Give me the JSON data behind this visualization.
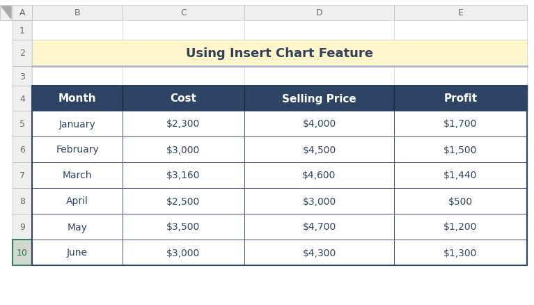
{
  "title": "Using Insert Chart Feature",
  "title_bg": "#FFF5CC",
  "title_color": "#2F4057",
  "title_border": "#A8B8D0",
  "header_row": [
    "Month",
    "Cost",
    "Selling Price",
    "Profit"
  ],
  "header_bg": "#2F4465",
  "header_text_color": "#FFFFFF",
  "rows": [
    [
      "January",
      "$2,300",
      "$4,000",
      "$1,700"
    ],
    [
      "February",
      "$3,000",
      "$4,500",
      "$1,500"
    ],
    [
      "March",
      "$3,160",
      "$4,600",
      "$1,440"
    ],
    [
      "April",
      "$2,500",
      "$3,000",
      "$500"
    ],
    [
      "May",
      "$3,500",
      "$4,700",
      "$1,200"
    ],
    [
      "June",
      "$3,000",
      "$4,300",
      "$1,300"
    ]
  ],
  "row_bg": "#FFFFFF",
  "row_text_color": "#2F4465",
  "grid_color": "#2F4465",
  "excel_bg": "#FFFFFF",
  "col_header_bg": "#EFEFEF",
  "col_header_text": "#666666",
  "row_header_bg": "#EFEFEF",
  "row_header_text": "#666666",
  "row10_header_bg": "#D0D8D0",
  "row10_header_text": "#2F7050",
  "col_labels": [
    "A",
    "B",
    "C",
    "D",
    "E"
  ],
  "row_labels": [
    "1",
    "2",
    "3",
    "4",
    "5",
    "6",
    "7",
    "8",
    "9",
    "10"
  ],
  "figsize": [
    7.67,
    4.39
  ],
  "dpi": 100
}
